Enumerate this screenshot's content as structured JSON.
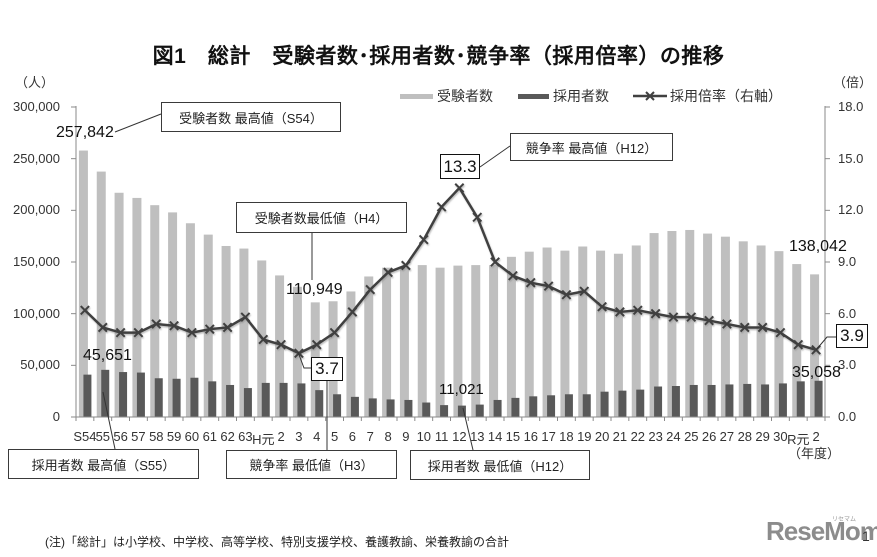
{
  "title": "図1　総計　受験者数･採用者数･競争率（採用倍率）の推移",
  "axis": {
    "left_unit": "（人）",
    "right_unit": "（倍）",
    "x_unit": "（年度）",
    "left_ticks": [
      "300,000",
      "250,000",
      "200,000",
      "150,000",
      "100,000",
      "50,000",
      "0"
    ],
    "right_ticks": [
      "18.0",
      "15.0",
      "12.0",
      "9.0",
      "6.0",
      "3.0",
      "0.0"
    ]
  },
  "legend": [
    {
      "label": "受験者数",
      "type": "bar",
      "color": "#bfbfbf"
    },
    {
      "label": "採用者数",
      "type": "bar",
      "color": "#595959"
    },
    {
      "label": "採用倍率（右軸）",
      "type": "line",
      "color": "#404040",
      "marker": "x-icon"
    }
  ],
  "annotations": {
    "applicants_max_box": "受験者数 最高値（S54）",
    "applicants_max_value": "257,842",
    "applicants_min_box": "受験者数最低値（H4）",
    "applicants_min_value": "110,949",
    "rate_max_box": "競争率 最高値（H12）",
    "rate_max_value": "13.3",
    "rate_min_box": "競争率 最低値（H3）",
    "rate_min_value": "3.7",
    "hired_max_box": "採用者数 最高値（S55）",
    "hired_max_value": "45,651",
    "hired_min_box": "採用者数 最低値（H12）",
    "hired_min_value": "11,021",
    "latest_applicants_value": "138,042",
    "latest_hired_value": "35,058",
    "latest_rate_value": "3.9"
  },
  "footnote": "(注)「総計」は小学校、中学校、高等学校、特別支援学校、養護教諭、栄養教諭の合計",
  "logo": {
    "text": "ReseMom",
    "kana": "リセマム",
    "page": "1"
  },
  "chart_data": {
    "type": "bar",
    "title": "図1　総計　受験者数･採用者数･競争率（採用倍率）の推移",
    "xlabel": "（年度）",
    "ylabel": "（人）",
    "y2label": "（倍）",
    "ylim": [
      0,
      300000
    ],
    "y2lim": [
      0,
      18
    ],
    "yticks": [
      0,
      50000,
      100000,
      150000,
      200000,
      250000,
      300000
    ],
    "y2ticks": [
      0.0,
      3.0,
      6.0,
      9.0,
      12.0,
      15.0,
      18.0
    ],
    "grid": false,
    "legend_position": "top-right",
    "categories": [
      "S54",
      "55",
      "56",
      "57",
      "58",
      "59",
      "60",
      "61",
      "62",
      "63",
      "H元",
      "2",
      "3",
      "4",
      "5",
      "6",
      "7",
      "8",
      "9",
      "10",
      "11",
      "12",
      "13",
      "14",
      "15",
      "16",
      "17",
      "18",
      "19",
      "20",
      "21",
      "22",
      "23",
      "24",
      "25",
      "26",
      "27",
      "28",
      "29",
      "30",
      "R元",
      "2"
    ],
    "series": [
      {
        "name": "受験者数",
        "type": "bar",
        "axis": "left",
        "color": "#bfbfbf",
        "values": [
          257842,
          237500,
          217000,
          212000,
          205000,
          198000,
          187500,
          176500,
          165500,
          163000,
          151500,
          137000,
          126000,
          110949,
          112000,
          121500,
          136000,
          144500,
          144500,
          147000,
          144500,
          146500,
          147000,
          147000,
          155000,
          160000,
          164000,
          161000,
          165000,
          161000,
          158000,
          166000,
          178000,
          180000,
          181000,
          177500,
          174500,
          170000,
          166000,
          160500,
          148000,
          138042
        ]
      },
      {
        "name": "採用者数",
        "type": "bar",
        "axis": "left",
        "color": "#595959",
        "values": [
          41000,
          45651,
          43500,
          43000,
          37500,
          37000,
          38000,
          34500,
          31000,
          28000,
          33000,
          33000,
          32500,
          26000,
          22000,
          19500,
          18000,
          17000,
          16500,
          14000,
          11500,
          11021,
          12000,
          16500,
          18500,
          20000,
          21000,
          22000,
          22000,
          24500,
          25500,
          26500,
          29500,
          30000,
          31000,
          31000,
          31500,
          32000,
          31500,
          32500,
          34500,
          35058
        ]
      },
      {
        "name": "採用倍率（右軸）",
        "type": "line",
        "axis": "right",
        "color": "#404040",
        "marker": "x",
        "values": [
          6.2,
          5.2,
          4.9,
          4.9,
          5.4,
          5.3,
          4.9,
          5.1,
          5.2,
          5.8,
          4.5,
          4.2,
          3.7,
          4.2,
          4.9,
          6.1,
          7.4,
          8.4,
          8.8,
          10.3,
          12.2,
          13.3,
          11.6,
          9.0,
          8.2,
          7.8,
          7.6,
          7.1,
          7.3,
          6.4,
          6.1,
          6.2,
          6.0,
          5.8,
          5.8,
          5.6,
          5.4,
          5.2,
          5.2,
          4.9,
          4.2,
          3.9
        ]
      }
    ],
    "annotations": [
      {
        "text": "受験者数 最高値（S54）",
        "value": "257,842",
        "category": "S54"
      },
      {
        "text": "受験者数最低値（H4）",
        "value": "110,949",
        "category": "H4"
      },
      {
        "text": "競争率 最高値（H12）",
        "value": "13.3",
        "category": "H12"
      },
      {
        "text": "競争率 最低値（H3）",
        "value": "3.7",
        "category": "H3"
      },
      {
        "text": "採用者数 最高値（S55）",
        "value": "45,651",
        "category": "S55"
      },
      {
        "text": "採用者数 最低値（H12）",
        "value": "11,021",
        "category": "H12"
      },
      {
        "text": "",
        "value": "138,042",
        "category": "R2"
      },
      {
        "text": "",
        "value": "35,058",
        "category": "R2"
      },
      {
        "text": "",
        "value": "3.9",
        "category": "R2"
      }
    ]
  }
}
